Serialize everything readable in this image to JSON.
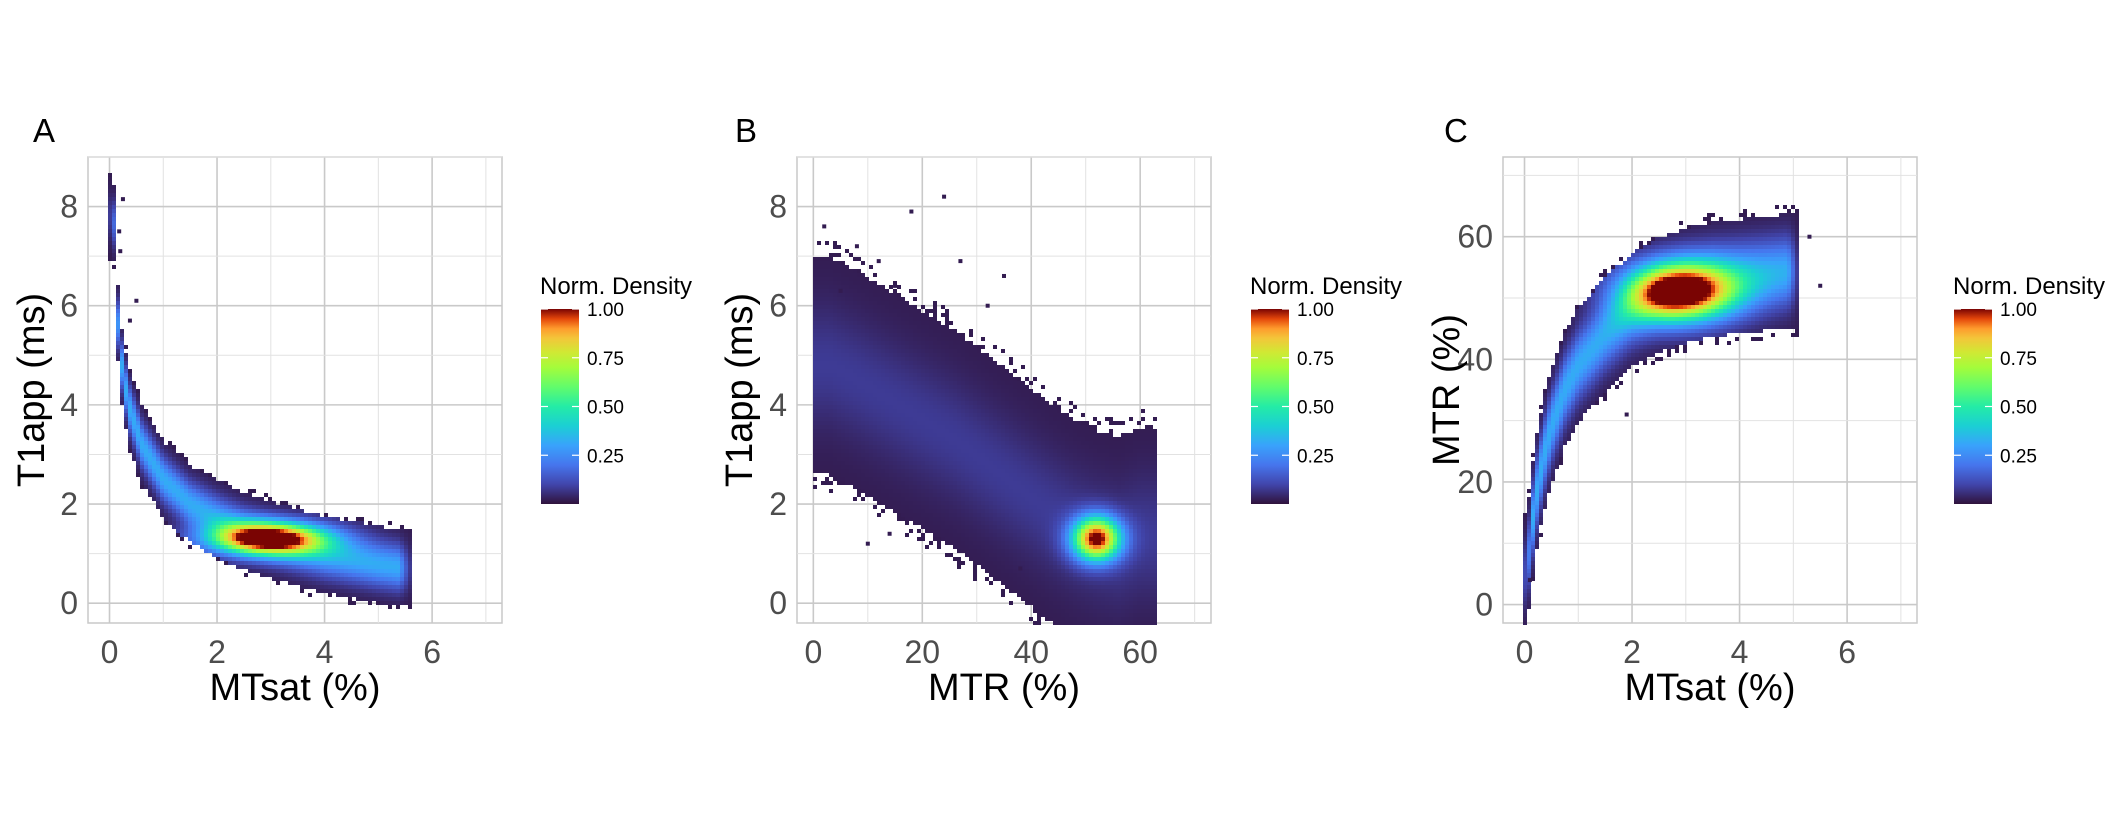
{
  "chart_data": [
    {
      "type": "heatmap",
      "panel_label": "A",
      "xlabel": "MTsat (%)",
      "ylabel": "T1app (ms)",
      "xlim": [
        -0.4,
        7.3
      ],
      "ylim": [
        -0.4,
        9.0
      ],
      "x_ticks": [
        0,
        2,
        4,
        6
      ],
      "y_ticks": [
        0,
        2,
        4,
        6,
        8
      ],
      "grid": true,
      "legend": {
        "title": "Norm. Density",
        "ticks": [
          0.25,
          0.5,
          0.75,
          1.0
        ],
        "tick_labels": [
          "0.25",
          "0.50",
          "0.75",
          "1.00"
        ],
        "placement": "right"
      },
      "density": {
        "curve": [
          [
            0.08,
            7.8
          ],
          [
            0.12,
            6.2
          ],
          [
            0.2,
            5.0
          ],
          [
            0.35,
            4.0
          ],
          [
            0.6,
            3.2
          ],
          [
            1.0,
            2.5
          ],
          [
            1.5,
            2.0
          ],
          [
            2.0,
            1.7
          ],
          [
            2.5,
            1.45
          ],
          [
            3.0,
            1.28
          ],
          [
            3.5,
            1.12
          ],
          [
            4.0,
            0.98
          ],
          [
            4.5,
            0.88
          ],
          [
            5.0,
            0.78
          ],
          [
            5.5,
            0.7
          ]
        ],
        "spread_x": 0.2,
        "spread_y": 0.3,
        "peak": [
          2.95,
          1.3
        ],
        "peak_spread": [
          0.75,
          0.22
        ],
        "outliers": [
          [
            0.25,
            8.15
          ],
          [
            0.18,
            7.5
          ],
          [
            0.2,
            7.1
          ],
          [
            0.5,
            6.1
          ],
          [
            0.38,
            5.7
          ]
        ]
      }
    },
    {
      "type": "heatmap",
      "panel_label": "B",
      "xlabel": "MTR (%)",
      "ylabel": "T1app (ms)",
      "xlim": [
        -3.0,
        73.0
      ],
      "ylim": [
        -0.4,
        9.0
      ],
      "x_ticks": [
        0,
        20,
        40,
        60
      ],
      "y_ticks": [
        0,
        2,
        4,
        6,
        8
      ],
      "grid": true,
      "legend": {
        "title": "Norm. Density",
        "ticks": [
          0.25,
          0.5,
          0.75,
          1.0
        ],
        "tick_labels": [
          "0.25",
          "0.50",
          "0.75",
          "1.00"
        ],
        "placement": "right"
      },
      "density": {
        "curve": [
          [
            3,
            4.8
          ],
          [
            8,
            4.5
          ],
          [
            14,
            4.1
          ],
          [
            20,
            3.7
          ],
          [
            26,
            3.3
          ],
          [
            32,
            2.8
          ],
          [
            38,
            2.3
          ],
          [
            44,
            1.8
          ],
          [
            48,
            1.5
          ],
          [
            52,
            1.28
          ],
          [
            56,
            1.15
          ],
          [
            60,
            1.35
          ]
        ],
        "spread_x": 5.0,
        "spread_y": 0.85,
        "peak": [
          52,
          1.3
        ],
        "peak_spread": [
          3.0,
          0.3
        ],
        "outliers": [
          [
            24,
            8.2
          ],
          [
            18,
            7.9
          ],
          [
            2,
            7.6
          ],
          [
            8,
            7.2
          ],
          [
            12,
            6.9
          ],
          [
            27,
            6.9
          ],
          [
            35,
            6.6
          ],
          [
            5,
            6.3
          ],
          [
            15,
            6.4
          ],
          [
            32,
            6.0
          ],
          [
            10,
            1.2
          ],
          [
            14,
            1.4
          ],
          [
            38,
            0.7
          ]
        ]
      }
    },
    {
      "type": "heatmap",
      "panel_label": "C",
      "xlabel": "MTsat (%)",
      "ylabel": "MTR (%)",
      "xlim": [
        -0.4,
        7.3
      ],
      "ylim": [
        -3.0,
        73.0
      ],
      "x_ticks": [
        0,
        2,
        4,
        6
      ],
      "y_ticks": [
        0,
        20,
        40,
        60
      ],
      "grid": true,
      "legend": {
        "title": "Norm. Density",
        "ticks": [
          0.25,
          0.5,
          0.75,
          1.0
        ],
        "tick_labels": [
          "0.25",
          "0.50",
          "0.75",
          "1.00"
        ],
        "placement": "right"
      },
      "density": {
        "curve": [
          [
            0.05,
            5
          ],
          [
            0.1,
            10
          ],
          [
            0.2,
            17
          ],
          [
            0.35,
            24
          ],
          [
            0.5,
            29
          ],
          [
            0.75,
            35
          ],
          [
            1.0,
            39
          ],
          [
            1.5,
            44
          ],
          [
            2.0,
            48
          ],
          [
            2.5,
            50.5
          ],
          [
            3.0,
            52
          ],
          [
            3.5,
            53
          ],
          [
            4.0,
            53.5
          ],
          [
            4.5,
            54
          ],
          [
            5.0,
            54.5
          ]
        ],
        "spread_x": 0.18,
        "spread_y": 3.6,
        "peak": [
          2.9,
          51
        ],
        "peak_spread": [
          0.7,
          3.2
        ],
        "outliers": [
          [
            5.5,
            52
          ],
          [
            5.3,
            60
          ],
          [
            1.9,
            31
          ],
          [
            0.1,
            4
          ]
        ]
      }
    }
  ]
}
